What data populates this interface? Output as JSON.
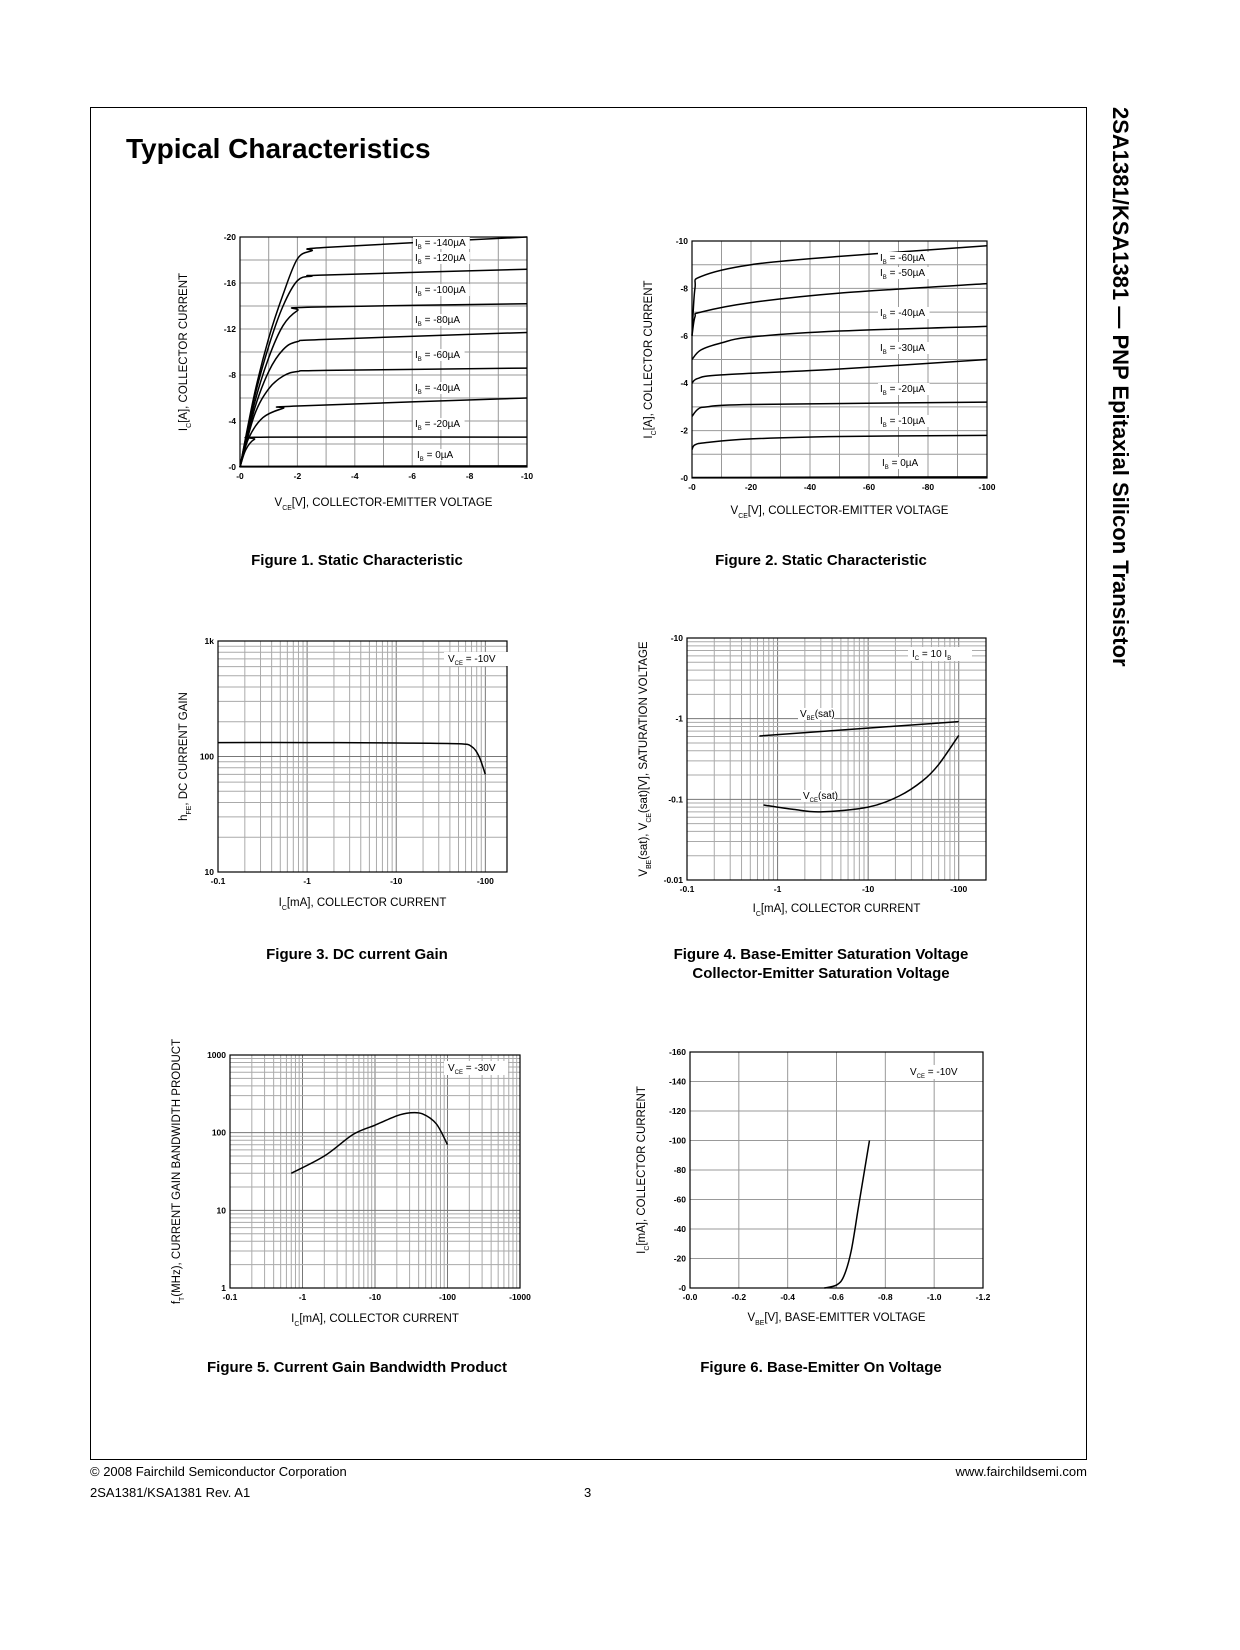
{
  "header": {
    "title": "Typical Characteristics",
    "side_title": "2SA1381/KSA1381 — PNP Epitaxial Silicon Transistor"
  },
  "footer": {
    "copyright": "© 2008 Fairchild Semiconductor Corporation",
    "part_rev": "2SA1381/KSA1381 Rev. A1",
    "page": "3",
    "website": "www.fairchildsemi.com"
  },
  "chart_data": [
    {
      "type": "line",
      "caption": [
        "Figure 1. Static Characteristic"
      ],
      "xlabel": {
        "main": "V",
        "sub": "CE",
        "rest": "[V], COLLECTOR-EMITTER VOLTAGE"
      },
      "ylabel": {
        "main": "I",
        "sub": "C",
        "rest": "[A], COLLECTOR CURRENT"
      },
      "xscale": "linear",
      "yscale": "linear",
      "xlim": [
        0,
        -10
      ],
      "ylim": [
        0,
        -20
      ],
      "grid": true,
      "xticks": [
        {
          "v": 0,
          "label": "-0"
        },
        {
          "v": -2,
          "label": "-2"
        },
        {
          "v": -4,
          "label": "-4"
        },
        {
          "v": -6,
          "label": "-6"
        },
        {
          "v": -8,
          "label": "-8"
        },
        {
          "v": -10,
          "label": "-10"
        }
      ],
      "yticks": [
        {
          "v": 0,
          "label": "-0"
        },
        {
          "v": -4,
          "label": "-4"
        },
        {
          "v": -8,
          "label": "-8"
        },
        {
          "v": -12,
          "label": "-12"
        },
        {
          "v": -16,
          "label": "-16"
        },
        {
          "v": -20,
          "label": "-20"
        }
      ],
      "series": [
        {
          "label": {
            "main": "I",
            "sub": "B",
            "rest": " = -140µA"
          },
          "points": [
            [
              0,
              0
            ],
            [
              -0.5,
              -6.3
            ],
            [
              -1,
              -11.2
            ],
            [
              -1.5,
              -15
            ],
            [
              -2,
              -18.1
            ],
            [
              -2.5,
              -18.8
            ],
            [
              -3,
              -19.1
            ],
            [
              -10,
              -20
            ]
          ]
        },
        {
          "label": {
            "main": "I",
            "sub": "B",
            "rest": " = -120µA"
          },
          "points": [
            [
              0,
              0
            ],
            [
              -0.5,
              -6
            ],
            [
              -1,
              -10.5
            ],
            [
              -1.5,
              -14
            ],
            [
              -2,
              -16.2
            ],
            [
              -2.5,
              -16.6
            ],
            [
              -3,
              -16.7
            ],
            [
              -10,
              -17.2
            ]
          ]
        },
        {
          "label": {
            "main": "I",
            "sub": "B",
            "rest": " = -100µA"
          },
          "points": [
            [
              0,
              0
            ],
            [
              -0.5,
              -5.5
            ],
            [
              -1,
              -9.5
            ],
            [
              -1.5,
              -12.3
            ],
            [
              -2,
              -13.6
            ],
            [
              -2.5,
              -13.9
            ],
            [
              -10,
              -14.2
            ]
          ]
        },
        {
          "label": {
            "main": "I",
            "sub": "B",
            "rest": " = -80µA"
          },
          "points": [
            [
              0,
              0
            ],
            [
              -0.5,
              -5
            ],
            [
              -1,
              -8.3
            ],
            [
              -1.5,
              -10.2
            ],
            [
              -2,
              -10.9
            ],
            [
              -3,
              -11.1
            ],
            [
              -10,
              -11.7
            ]
          ]
        },
        {
          "label": {
            "main": "I",
            "sub": "B",
            "rest": " = -60µA"
          },
          "points": [
            [
              0,
              0
            ],
            [
              -0.5,
              -4.5
            ],
            [
              -1,
              -6.8
            ],
            [
              -1.5,
              -7.9
            ],
            [
              -2,
              -8.3
            ],
            [
              -3,
              -8.4
            ],
            [
              -10,
              -8.6
            ]
          ]
        },
        {
          "label": {
            "main": "I",
            "sub": "B",
            "rest": " = -40µA"
          },
          "points": [
            [
              0,
              0
            ],
            [
              -0.3,
              -2.5
            ],
            [
              -0.8,
              -4.3
            ],
            [
              -1.5,
              -5.1
            ],
            [
              -2,
              -5.3
            ],
            [
              -10,
              -6.0
            ]
          ]
        },
        {
          "label": {
            "main": "I",
            "sub": "B",
            "rest": " = -20µA"
          },
          "points": [
            [
              0,
              0
            ],
            [
              -0.2,
              -1.5
            ],
            [
              -0.5,
              -2.4
            ],
            [
              -1,
              -2.6
            ],
            [
              -10,
              -2.6
            ]
          ]
        },
        {
          "label": {
            "main": "I",
            "sub": "B",
            "rest": " = 0µA"
          },
          "points": [
            [
              0,
              -0.05
            ],
            [
              -10,
              -0.1
            ]
          ]
        }
      ],
      "annotations": []
    },
    {
      "type": "line",
      "caption": [
        "Figure 2. Static Characteristic"
      ],
      "xlabel": {
        "main": "V",
        "sub": "CE",
        "rest": "[V], COLLECTOR-EMITTER VOLTAGE"
      },
      "ylabel": {
        "main": "I",
        "sub": "C",
        "rest": "[A], COLLECTOR CURRENT"
      },
      "xscale": "linear",
      "yscale": "linear",
      "xlim": [
        0,
        -100
      ],
      "ylim": [
        0,
        -10
      ],
      "grid": true,
      "xticks": [
        {
          "v": 0,
          "label": "-0"
        },
        {
          "v": -20,
          "label": "-20"
        },
        {
          "v": -40,
          "label": "-40"
        },
        {
          "v": -60,
          "label": "-60"
        },
        {
          "v": -80,
          "label": "-80"
        },
        {
          "v": -100,
          "label": "-100"
        }
      ],
      "yticks": [
        {
          "v": 0,
          "label": "-0"
        },
        {
          "v": -2,
          "label": "-2"
        },
        {
          "v": -4,
          "label": "-4"
        },
        {
          "v": -6,
          "label": "-6"
        },
        {
          "v": -8,
          "label": "-8"
        },
        {
          "v": -10,
          "label": "-10"
        }
      ],
      "series": [
        {
          "label": {
            "main": "I",
            "sub": "B",
            "rest": " = -60µA"
          },
          "points": [
            [
              0,
              -6.0
            ],
            [
              -1,
              -8.0
            ],
            [
              -3,
              -8.5
            ],
            [
              -20,
              -9.0
            ],
            [
              -50,
              -9.35
            ],
            [
              -100,
              -9.8
            ]
          ]
        },
        {
          "label": {
            "main": "I",
            "sub": "B",
            "rest": " = -50µA"
          },
          "points": [
            [
              0,
              -6.0
            ],
            [
              -1,
              -6.8
            ],
            [
              -3,
              -7.0
            ],
            [
              -20,
              -7.4
            ],
            [
              -50,
              -7.8
            ],
            [
              -100,
              -8.2
            ]
          ]
        },
        {
          "label": {
            "main": "I",
            "sub": "B",
            "rest": " = -40µA"
          },
          "points": [
            [
              0,
              -5.0
            ],
            [
              -3,
              -5.4
            ],
            [
              -10,
              -5.7
            ],
            [
              -20,
              -5.95
            ],
            [
              -50,
              -6.2
            ],
            [
              -100,
              -6.4
            ]
          ]
        },
        {
          "label": {
            "main": "I",
            "sub": "B",
            "rest": " = -30µA"
          },
          "points": [
            [
              0,
              -4.0
            ],
            [
              -2,
              -4.2
            ],
            [
              -10,
              -4.35
            ],
            [
              -50,
              -4.6
            ],
            [
              -100,
              -5.0
            ]
          ]
        },
        {
          "label": {
            "main": "I",
            "sub": "B",
            "rest": " = -20µA"
          },
          "points": [
            [
              0,
              -2.6
            ],
            [
              -2,
              -2.9
            ],
            [
              -5,
              -3.0
            ],
            [
              -20,
              -3.1
            ],
            [
              -100,
              -3.2
            ]
          ]
        },
        {
          "label": {
            "main": "I",
            "sub": "B",
            "rest": " = -10µA"
          },
          "points": [
            [
              0,
              -1.2
            ],
            [
              -1,
              -1.4
            ],
            [
              -5,
              -1.5
            ],
            [
              -20,
              -1.65
            ],
            [
              -50,
              -1.75
            ],
            [
              -100,
              -1.8
            ]
          ]
        },
        {
          "label": {
            "main": "I",
            "sub": "B",
            "rest": " = 0µA"
          },
          "points": [
            [
              0,
              -0.02
            ],
            [
              -100,
              -0.05
            ]
          ]
        }
      ],
      "annotations": []
    },
    {
      "type": "line",
      "caption": [
        "Figure 3. DC current Gain"
      ],
      "xlabel": {
        "main": "I",
        "sub": "C",
        "rest": "[mA], COLLECTOR CURRENT"
      },
      "ylabel": {
        "main": "h",
        "sub": "FE",
        "rest": ", DC CURRENT GAIN"
      },
      "xscale": "log",
      "yscale": "log",
      "xlim": [
        -0.1,
        -175
      ],
      "ylim": [
        10,
        1000
      ],
      "grid": true,
      "xticks": [
        {
          "v": -0.1,
          "label": "-0.1"
        },
        {
          "v": -1,
          "label": "-1"
        },
        {
          "v": -10,
          "label": "-10"
        },
        {
          "v": -100,
          "label": "-100"
        }
      ],
      "yticks": [
        {
          "v": 10,
          "label": "10"
        },
        {
          "v": 100,
          "label": "100"
        },
        {
          "v": 1000,
          "label": "1k"
        }
      ],
      "series": [
        {
          "points": [
            [
              -0.1,
              132
            ],
            [
              -1,
              132
            ],
            [
              -10,
              131
            ],
            [
              -50,
              129
            ],
            [
              -70,
              122
            ],
            [
              -85,
              100
            ],
            [
              -100,
              70
            ]
          ]
        }
      ],
      "annotations": [
        {
          "main": "V",
          "sub": "CE",
          "rest": " = -10V"
        }
      ]
    },
    {
      "type": "line",
      "caption": [
        "Figure 4. Base-Emitter Saturation Voltage",
        "Collector-Emitter Saturation Voltage"
      ],
      "xlabel": {
        "main": "I",
        "sub": "C",
        "rest": "[mA], COLLECTOR CURRENT"
      },
      "ylabel": {
        "main": "V",
        "sub": "BE",
        "rest": "(sat), V",
        "sub2": "CE",
        "rest2": "(sat)[V], SATURATION VOLTAGE"
      },
      "xscale": "log",
      "yscale": "log",
      "xlim": [
        -0.1,
        -200
      ],
      "ylim": [
        -0.01,
        -10
      ],
      "grid": true,
      "xticks": [
        {
          "v": -0.1,
          "label": "-0.1"
        },
        {
          "v": -1,
          "label": "-1"
        },
        {
          "v": -10,
          "label": "-10"
        },
        {
          "v": -100,
          "label": "-100"
        }
      ],
      "yticks": [
        {
          "v": -0.01,
          "label": "-0.01"
        },
        {
          "v": -0.1,
          "label": "-0.1"
        },
        {
          "v": -1,
          "label": "-1"
        },
        {
          "v": -10,
          "label": "-10"
        }
      ],
      "series": [
        {
          "label": {
            "main": "V",
            "sub": "BE",
            "rest": "(sat)"
          },
          "points": [
            [
              -0.63,
              -0.61
            ],
            [
              -100,
              -0.92
            ]
          ]
        },
        {
          "label": {
            "main": "V",
            "sub": "CE",
            "rest": "(sat)"
          },
          "points": [
            [
              -0.7,
              -0.085
            ],
            [
              -1.5,
              -0.075
            ],
            [
              -3,
              -0.07
            ],
            [
              -10,
              -0.08
            ],
            [
              -22,
              -0.11
            ],
            [
              -40,
              -0.17
            ],
            [
              -60,
              -0.27
            ],
            [
              -100,
              -0.62
            ]
          ]
        }
      ],
      "annotations": [
        {
          "main": "I",
          "sub": "C",
          "rest": " = 10 I",
          "sub2": "B"
        }
      ]
    },
    {
      "type": "line",
      "caption": [
        "Figure 5. Current Gain Bandwidth Product"
      ],
      "xlabel": {
        "main": "I",
        "sub": "C",
        "rest": "[mA], COLLECTOR CURRENT"
      },
      "ylabel": {
        "main": "f",
        "sub": "T",
        "rest": "(MHz), CURRENT GAIN BANDWIDTH PRODUCT"
      },
      "xscale": "log",
      "yscale": "log",
      "xlim": [
        -0.1,
        -1000
      ],
      "ylim": [
        1,
        1000
      ],
      "grid": true,
      "xticks": [
        {
          "v": -0.1,
          "label": "-0.1"
        },
        {
          "v": -1,
          "label": "-1"
        },
        {
          "v": -10,
          "label": "-10"
        },
        {
          "v": -100,
          "label": "-100"
        },
        {
          "v": -1000,
          "label": "-1000"
        }
      ],
      "yticks": [
        {
          "v": 1,
          "label": "1"
        },
        {
          "v": 10,
          "label": "10"
        },
        {
          "v": 100,
          "label": "100"
        },
        {
          "v": 1000,
          "label": "1000"
        }
      ],
      "series": [
        {
          "points": [
            [
              -0.7,
              30
            ],
            [
              -2,
              50
            ],
            [
              -5,
              95
            ],
            [
              -10,
              125
            ],
            [
              -20,
              165
            ],
            [
              -30,
              180
            ],
            [
              -45,
              175
            ],
            [
              -70,
              130
            ],
            [
              -100,
              70
            ]
          ]
        }
      ],
      "annotations": [
        {
          "main": "V",
          "sub": "CE",
          "rest": " = -30V"
        }
      ]
    },
    {
      "type": "line",
      "caption": [
        "Figure 6. Base-Emitter On Voltage"
      ],
      "xlabel": {
        "main": "V",
        "sub": "BE",
        "rest": "[V], BASE-EMITTER VOLTAGE"
      },
      "ylabel": {
        "main": "I",
        "sub": "C",
        "rest": "[mA], COLLECTOR CURRENT"
      },
      "xscale": "linear",
      "yscale": "linear",
      "xlim": [
        0,
        -1.2
      ],
      "ylim": [
        0,
        -160
      ],
      "grid": true,
      "xticks": [
        {
          "v": 0,
          "label": "-0.0"
        },
        {
          "v": -0.2,
          "label": "-0.2"
        },
        {
          "v": -0.4,
          "label": "-0.4"
        },
        {
          "v": -0.6,
          "label": "-0.6"
        },
        {
          "v": -0.8,
          "label": "-0.8"
        },
        {
          "v": -1.0,
          "label": "-1.0"
        },
        {
          "v": -1.2,
          "label": "-1.2"
        }
      ],
      "yticks": [
        {
          "v": 0,
          "label": "-0"
        },
        {
          "v": -20,
          "label": "-20"
        },
        {
          "v": -40,
          "label": "-40"
        },
        {
          "v": -60,
          "label": "-60"
        },
        {
          "v": -80,
          "label": "-80"
        },
        {
          "v": -100,
          "label": "-100"
        },
        {
          "v": -120,
          "label": "-120"
        },
        {
          "v": -140,
          "label": "-140"
        },
        {
          "v": -160,
          "label": "-160"
        }
      ],
      "series": [
        {
          "points": [
            [
              -0.55,
              0
            ],
            [
              -0.6,
              -2
            ],
            [
              -0.63,
              -8
            ],
            [
              -0.66,
              -25
            ],
            [
              -0.69,
              -55
            ],
            [
              -0.72,
              -85
            ],
            [
              -0.735,
              -100
            ]
          ]
        }
      ],
      "annotations": [
        {
          "main": "V",
          "sub": "CE",
          "rest": " = -10V"
        }
      ]
    }
  ]
}
